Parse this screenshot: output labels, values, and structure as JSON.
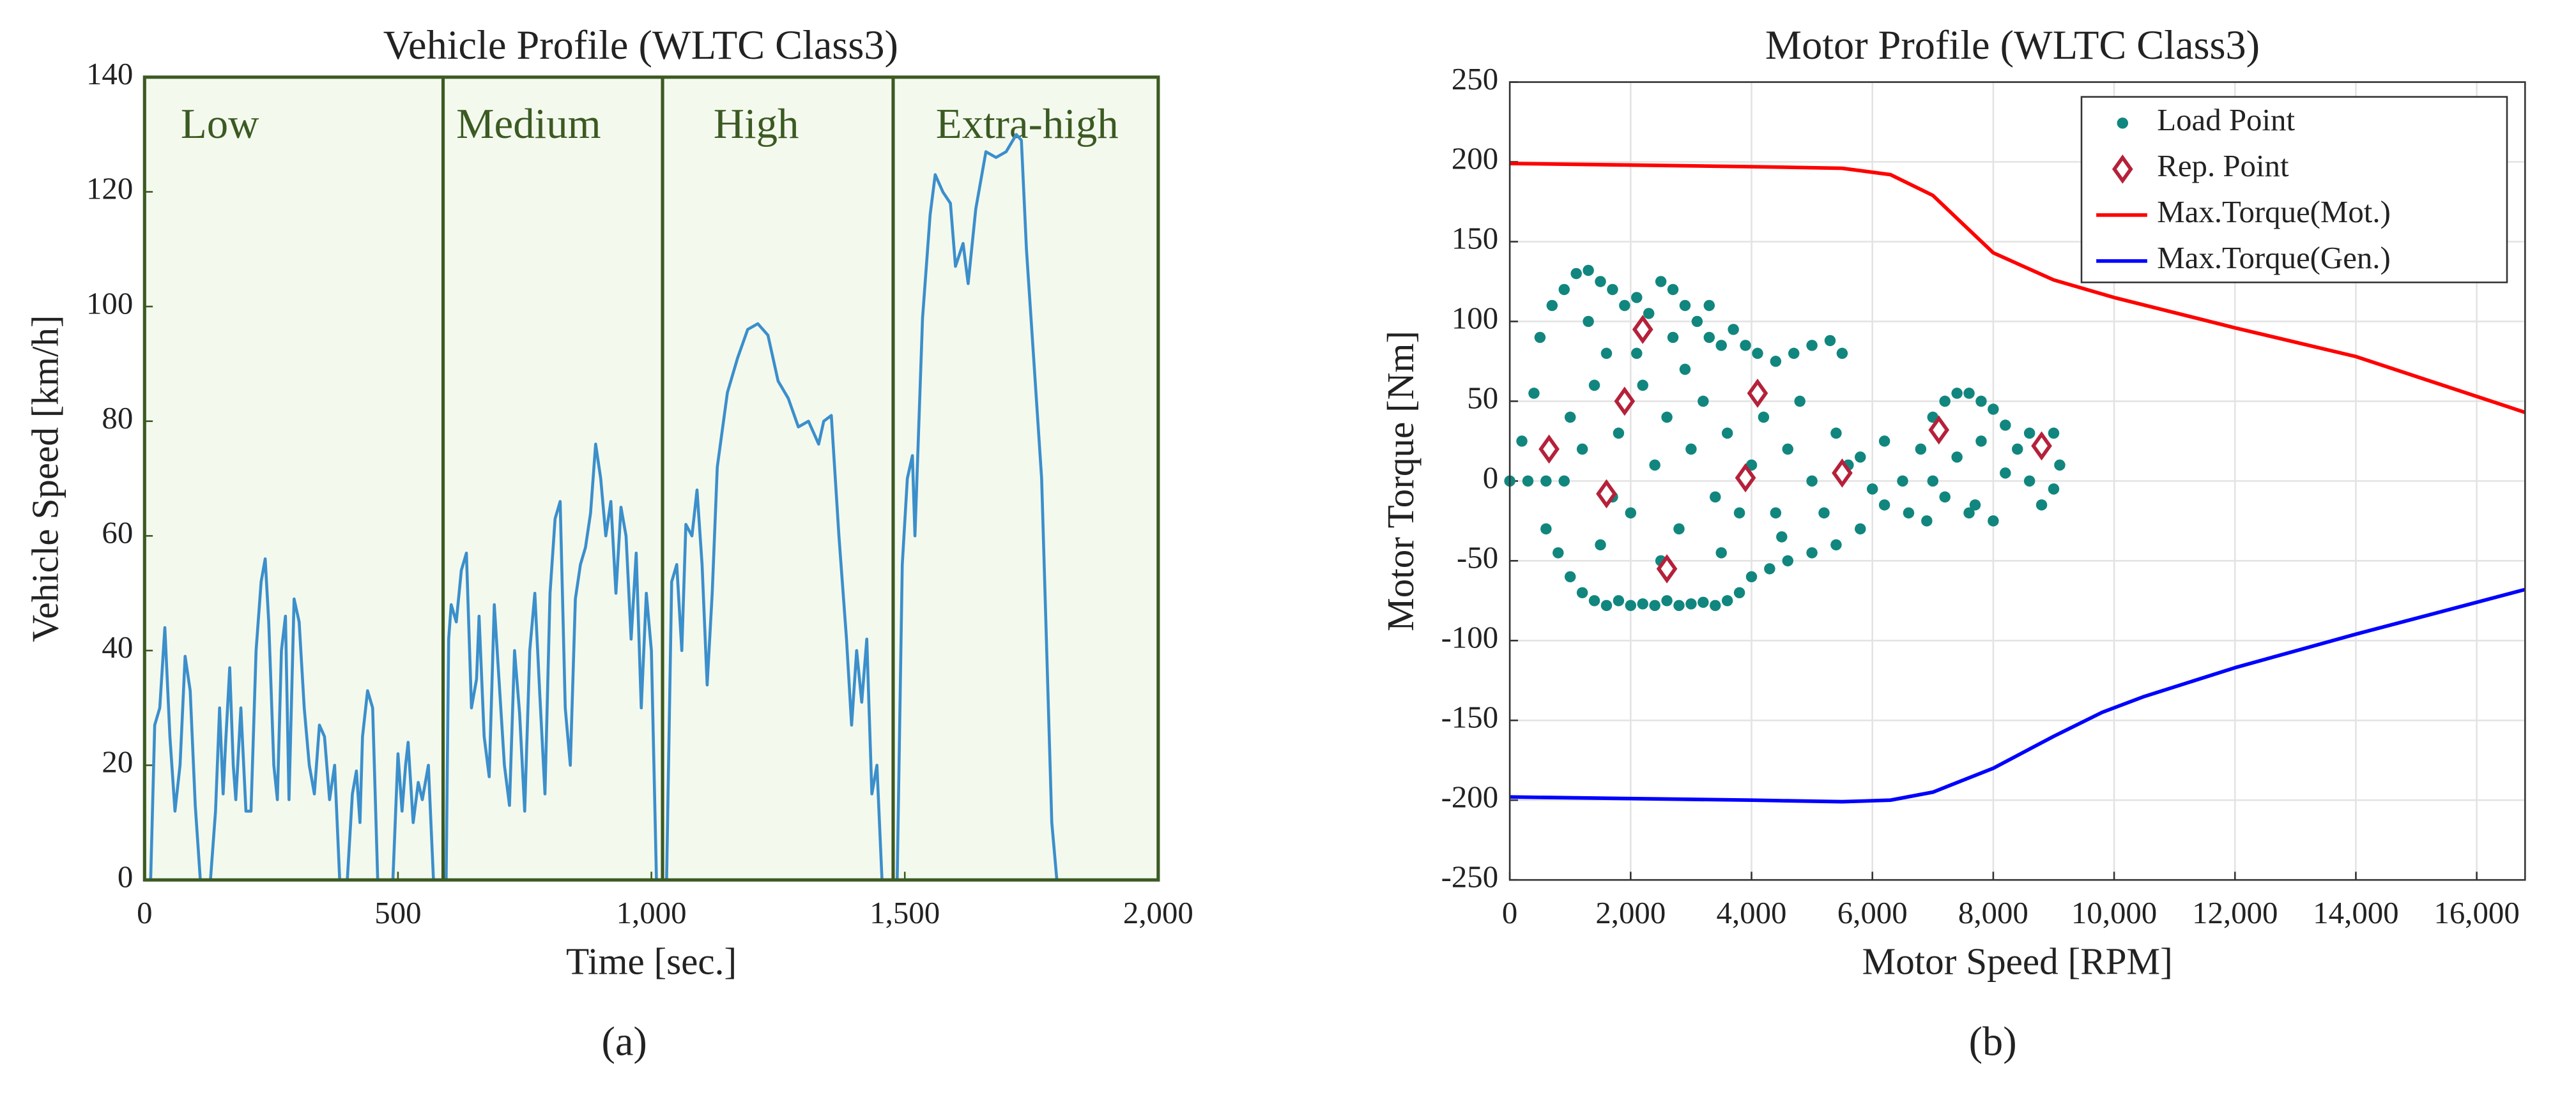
{
  "chart_data": [
    {
      "type": "line",
      "title": "Vehicle Profile (WLTC Class3)",
      "xlabel": "Time [sec.]",
      "ylabel": "Vehicle Speed [km/h]",
      "caption": "(a)",
      "color": "#3b8fcb",
      "plot_background": "#f4f9ee",
      "frame_color": "#3b5a22",
      "grid": false,
      "xlim": [
        0,
        2000
      ],
      "xticks": [
        0,
        500,
        {
          "value": 1000,
          "label": "1,000"
        },
        {
          "value": 1500,
          "label": "1,500"
        },
        {
          "value": 2000,
          "label": "2,000"
        }
      ],
      "ylim": [
        0,
        140
      ],
      "yticks": [
        0,
        20,
        40,
        60,
        80,
        100,
        120,
        140
      ],
      "phase_labels": [
        "Low",
        "Medium",
        "High",
        "Extra-high"
      ],
      "dividers": [
        589,
        1022,
        1477
      ],
      "x": [
        0,
        12,
        20,
        30,
        40,
        50,
        60,
        70,
        80,
        90,
        100,
        110,
        130,
        140,
        148,
        155,
        160,
        168,
        175,
        180,
        190,
        200,
        210,
        220,
        230,
        238,
        245,
        255,
        262,
        270,
        278,
        285,
        295,
        305,
        315,
        325,
        335,
        345,
        355,
        365,
        375,
        385,
        400,
        410,
        418,
        425,
        430,
        440,
        450,
        460,
        490,
        500,
        508,
        515,
        520,
        530,
        540,
        548,
        560,
        570,
        589,
        595,
        600,
        605,
        615,
        625,
        635,
        645,
        655,
        660,
        670,
        680,
        690,
        700,
        710,
        720,
        730,
        740,
        750,
        760,
        770,
        780,
        790,
        800,
        810,
        820,
        830,
        840,
        850,
        860,
        870,
        880,
        890,
        900,
        910,
        920,
        930,
        940,
        950,
        960,
        970,
        980,
        990,
        1000,
        1010,
        1022,
        1030,
        1040,
        1050,
        1060,
        1068,
        1080,
        1090,
        1100,
        1110,
        1115,
        1120,
        1130,
        1150,
        1170,
        1190,
        1210,
        1230,
        1250,
        1270,
        1290,
        1310,
        1330,
        1340,
        1355,
        1370,
        1385,
        1395,
        1405,
        1415,
        1425,
        1435,
        1445,
        1455,
        1477,
        1485,
        1495,
        1505,
        1515,
        1520,
        1535,
        1550,
        1560,
        1575,
        1590,
        1600,
        1615,
        1625,
        1640,
        1660,
        1680,
        1700,
        1720,
        1730,
        1740,
        1755,
        1770,
        1780,
        1790,
        1800
      ],
      "values": [
        0,
        0,
        27,
        30,
        44,
        25,
        12,
        20,
        39,
        33,
        13,
        0,
        0,
        12,
        30,
        15,
        24,
        37,
        20,
        14,
        30,
        12,
        12,
        40,
        52,
        56,
        45,
        20,
        14,
        40,
        46,
        14,
        49,
        45,
        30,
        20,
        15,
        27,
        25,
        14,
        20,
        0,
        0,
        15,
        19,
        10,
        25,
        33,
        30,
        0,
        0,
        22,
        12,
        20,
        24,
        10,
        17,
        14,
        20,
        0,
        0,
        0,
        42,
        48,
        45,
        54,
        57,
        30,
        35,
        46,
        25,
        18,
        48,
        34,
        20,
        13,
        40,
        29,
        12,
        40,
        50,
        32,
        15,
        50,
        63,
        66,
        30,
        20,
        49,
        55,
        58,
        64,
        76,
        70,
        60,
        66,
        50,
        65,
        60,
        42,
        57,
        30,
        50,
        40,
        0,
        0,
        0,
        52,
        55,
        40,
        62,
        60,
        68,
        55,
        34,
        42,
        50,
        72,
        85,
        91,
        96,
        97,
        95,
        87,
        84,
        79,
        80,
        76,
        80,
        81,
        60,
        42,
        27,
        40,
        31,
        42,
        15,
        20,
        0,
        0,
        0,
        55,
        70,
        74,
        60,
        98,
        116,
        123,
        120,
        118,
        107,
        111,
        104,
        117,
        127,
        126,
        127,
        130,
        129,
        110,
        90,
        70,
        40,
        10,
        0
      ]
    },
    {
      "type": "scatter",
      "title": "Motor Profile (WLTC Class3)",
      "xlabel": "Motor Speed [RPM]",
      "ylabel": "Motor Torque [Nm]",
      "caption": "(b)",
      "plot_background": "#ffffff",
      "frame_color": "#333333",
      "grid": true,
      "legend": "top right",
      "xlim": [
        0,
        16800
      ],
      "xticks": [
        0,
        {
          "value": 2000,
          "label": "2,000"
        },
        {
          "value": 4000,
          "label": "4,000"
        },
        {
          "value": 6000,
          "label": "6,000"
        },
        {
          "value": 8000,
          "label": "8,000"
        },
        {
          "value": 10000,
          "label": "10,000"
        },
        {
          "value": 12000,
          "label": "12,000"
        },
        {
          "value": 14000,
          "label": "14,000"
        },
        {
          "value": 16000,
          "label": "16,000"
        }
      ],
      "ylim": [
        -250,
        250
      ],
      "yticks": [
        -250,
        -200,
        -150,
        -100,
        -50,
        0,
        50,
        100,
        150,
        200,
        250
      ],
      "series": [
        {
          "name": "Load Point",
          "mode": "markers",
          "marker": "circle",
          "color": "#11867e",
          "x": [
            0,
            300,
            600,
            900,
            200,
            400,
            500,
            700,
            900,
            1100,
            1300,
            1500,
            1700,
            1900,
            2100,
            2300,
            2500,
            2700,
            2900,
            3100,
            3300,
            3500,
            3700,
            3900,
            4100,
            4400,
            4700,
            5000,
            5300,
            5500,
            600,
            800,
            1000,
            1200,
            1400,
            1600,
            1800,
            2000,
            2200,
            2400,
            2600,
            2800,
            3000,
            3200,
            3400,
            3600,
            3800,
            4000,
            4300,
            4600,
            5000,
            5400,
            5800,
            1000,
            1200,
            1400,
            1600,
            1800,
            2000,
            2200,
            2400,
            2600,
            2800,
            3000,
            3200,
            3400,
            3600,
            3800,
            4000,
            4200,
            4400,
            4600,
            4800,
            5000,
            5200,
            5400,
            5600,
            1500,
            2500,
            3500,
            4500,
            1300,
            2100,
            2900,
            3300,
            1700,
            2700,
            5800,
            6000,
            6200,
            6500,
            6800,
            7000,
            7200,
            7400,
            7600,
            7800,
            8000,
            8200,
            8400,
            8600,
            8800,
            8000,
            7600,
            7200,
            7000,
            7400,
            7800,
            8200,
            8600,
            9000,
            9100,
            9000,
            7700,
            6600,
            6200,
            6900
          ],
          "values": [
            0,
            0,
            0,
            0,
            25,
            55,
            90,
            110,
            120,
            130,
            132,
            125,
            120,
            110,
            115,
            105,
            125,
            120,
            110,
            100,
            90,
            85,
            95,
            85,
            80,
            75,
            80,
            85,
            88,
            80,
            -30,
            -45,
            -60,
            -70,
            -75,
            -78,
            -75,
            -78,
            -77,
            -78,
            -75,
            -78,
            -77,
            -76,
            -78,
            -75,
            -70,
            -60,
            -55,
            -50,
            -45,
            -40,
            -30,
            40,
            20,
            60,
            80,
            30,
            -20,
            60,
            10,
            40,
            -30,
            20,
            50,
            -10,
            30,
            -20,
            10,
            40,
            -20,
            20,
            50,
            0,
            -20,
            30,
            10,
            -40,
            -50,
            -45,
            -35,
            100,
            80,
            70,
            110,
            -10,
            90,
            15,
            -5,
            25,
            0,
            20,
            40,
            50,
            55,
            55,
            50,
            45,
            35,
            20,
            0,
            -15,
            -25,
            -20,
            -10,
            0,
            15,
            25,
            5,
            30,
            30,
            10,
            -5,
            -15,
            -20,
            -15,
            -25
          ]
        },
        {
          "name": "Rep. Point",
          "mode": "markers",
          "marker": "diamond",
          "color": "#b5213a",
          "x": [
            650,
            1600,
            1900,
            2200,
            2600,
            3900,
            4100,
            5500,
            7100,
            8800
          ],
          "values": [
            20,
            -8,
            50,
            95,
            -55,
            2,
            55,
            5,
            32,
            22
          ]
        },
        {
          "name": "Max.Torque(Mot.)",
          "mode": "lines",
          "color": "#ff0000",
          "x": [
            0,
            2000,
            4000,
            5500,
            6300,
            7000,
            8000,
            9000,
            10000,
            12000,
            14000,
            16800
          ],
          "values": [
            199,
            198,
            197,
            196,
            192,
            179,
            143,
            126,
            115,
            96,
            78,
            43
          ]
        },
        {
          "name": "Max.Torque(Gen.)",
          "mode": "lines",
          "color": "#0000ff",
          "x": [
            0,
            2000,
            4000,
            5500,
            6300,
            7000,
            8000,
            9000,
            9800,
            10500,
            12000,
            14000,
            16800
          ],
          "values": [
            -198,
            -199,
            -200,
            -201,
            -200,
            -195,
            -180,
            -160,
            -145,
            -135,
            -117,
            -96,
            -68
          ]
        }
      ]
    }
  ]
}
